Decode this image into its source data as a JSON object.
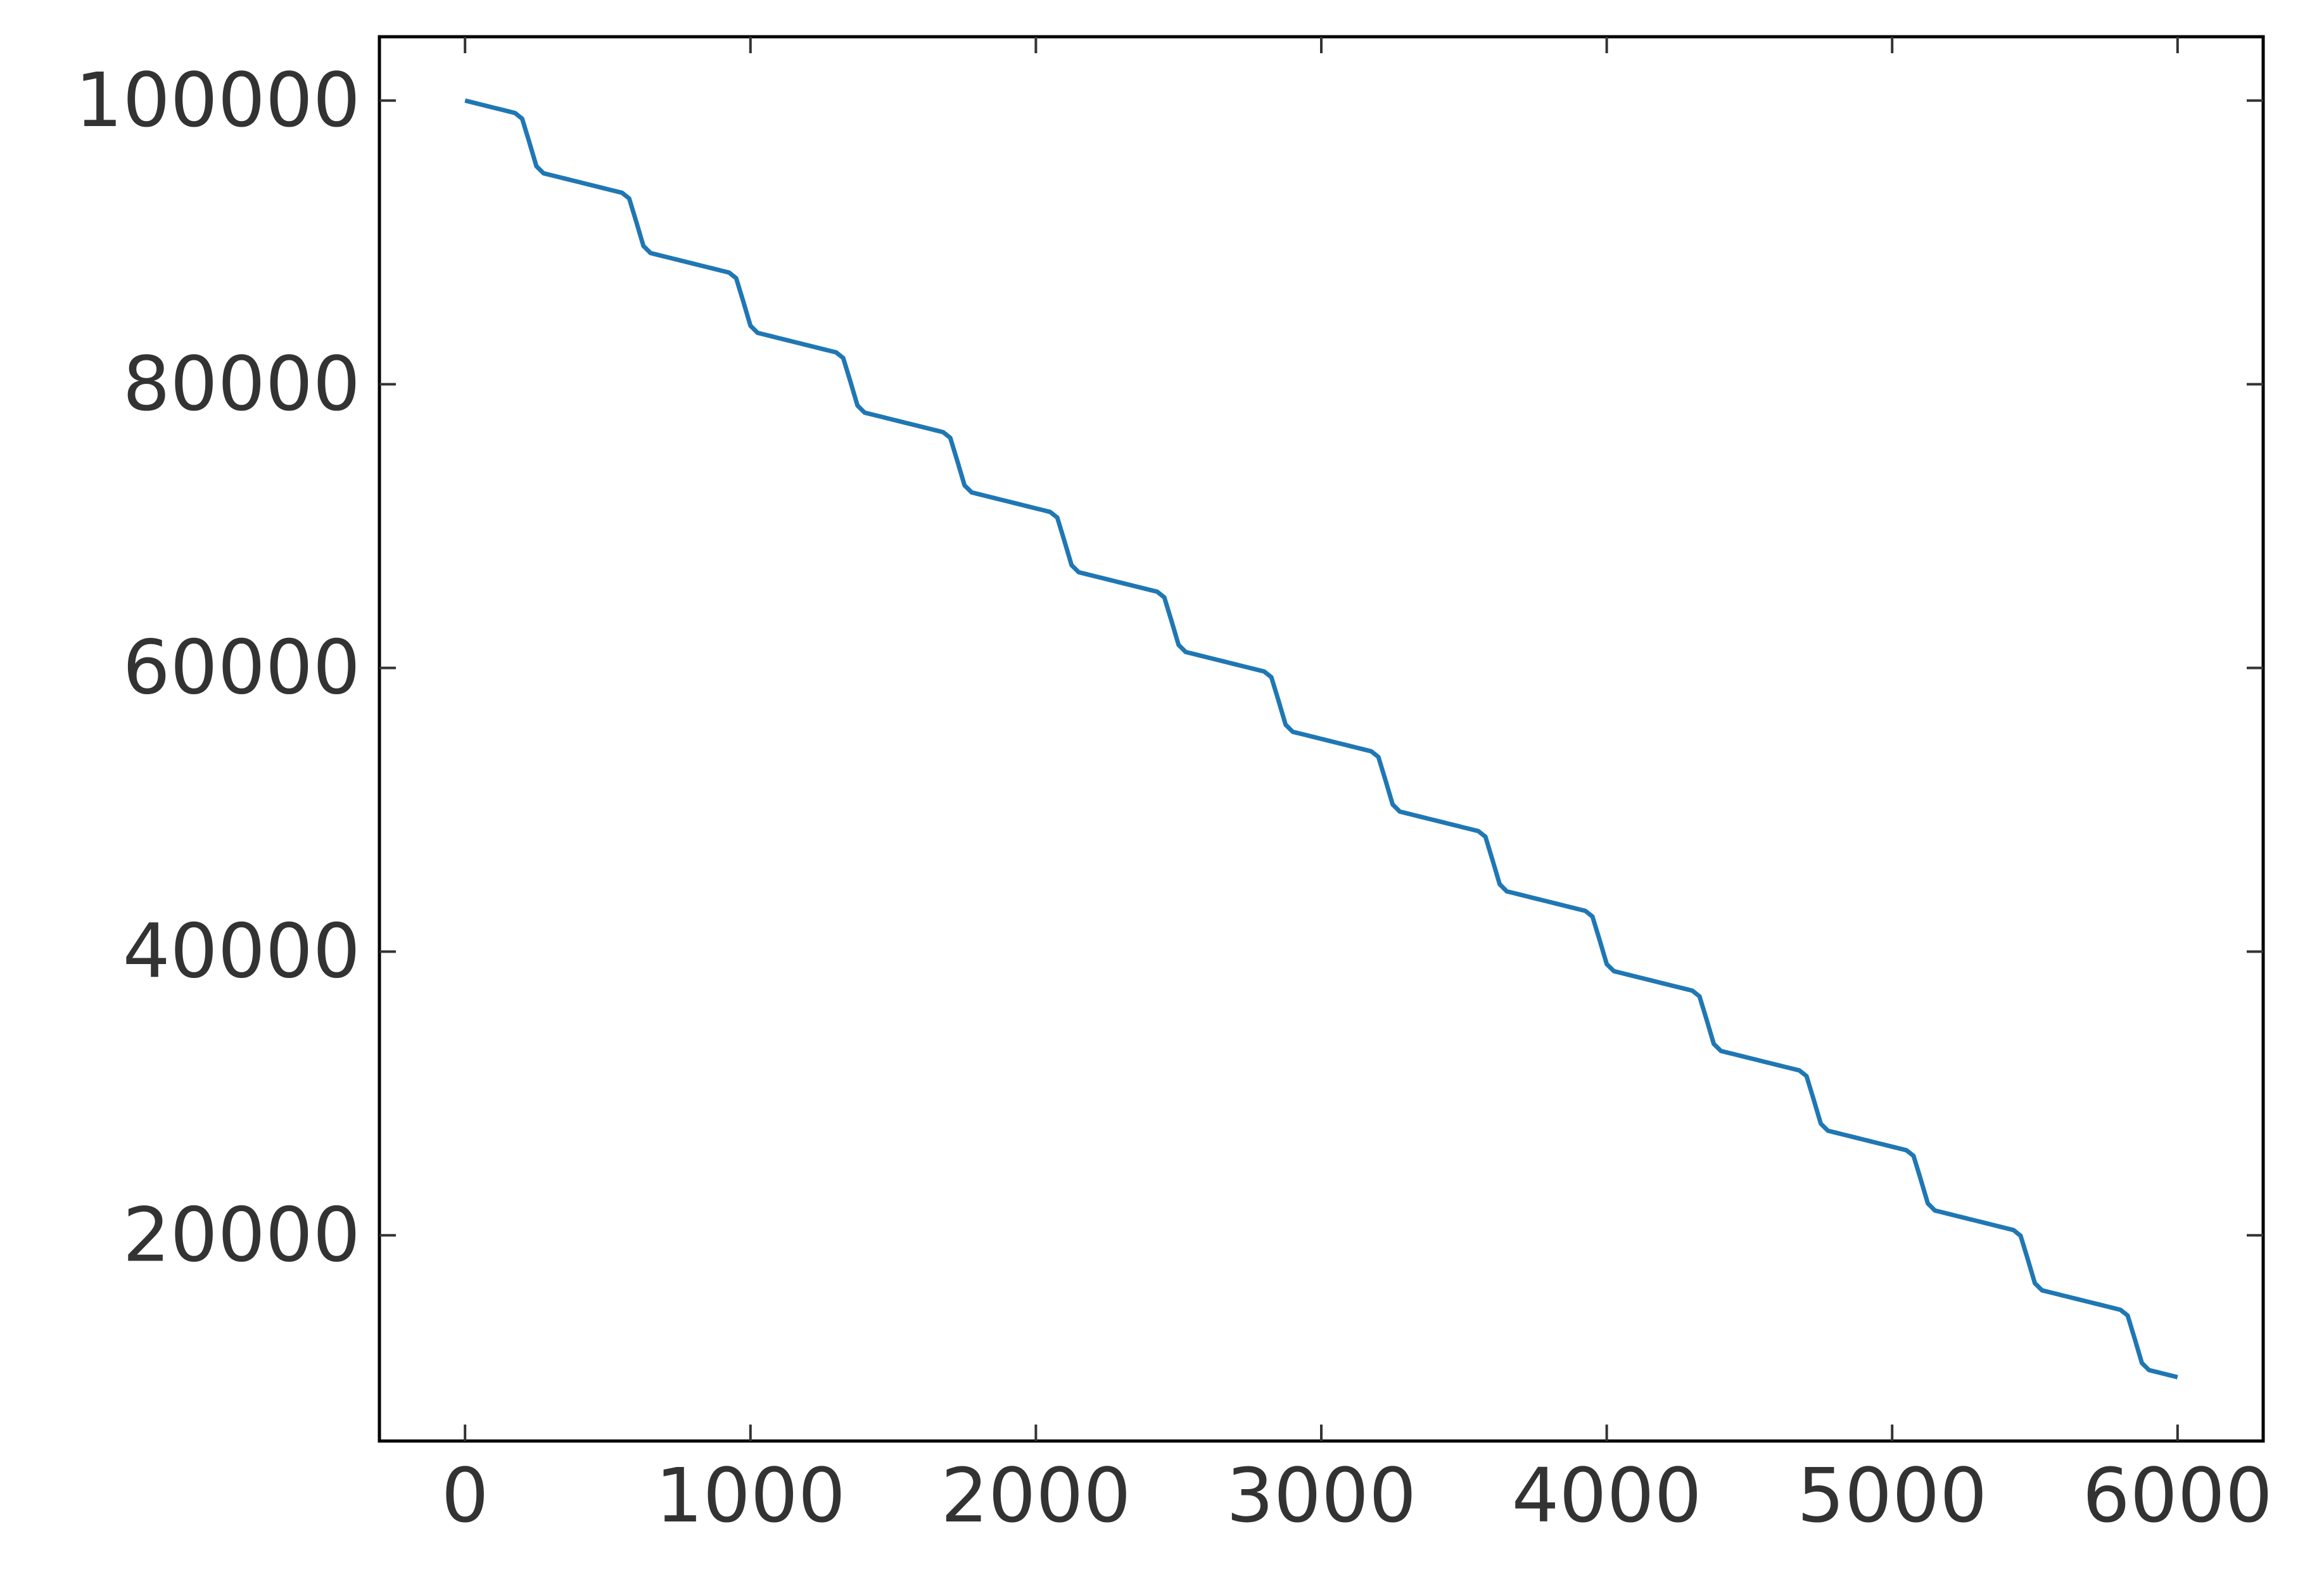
{
  "chart_data": {
    "type": "line",
    "x": [
      0,
      25,
      50,
      75,
      100,
      125,
      150,
      175,
      200,
      225,
      250,
      275,
      300,
      325,
      350,
      375,
      400,
      425,
      450,
      475,
      500,
      525,
      550,
      575,
      600,
      625,
      650,
      675,
      700,
      725,
      750,
      775,
      800,
      825,
      850,
      875,
      900,
      925,
      950,
      975,
      1000,
      1025,
      1050,
      1075,
      1100,
      1125,
      1150,
      1175,
      1200,
      1225,
      1250,
      1275,
      1300,
      1325,
      1350,
      1375,
      1400,
      1425,
      1450,
      1475,
      1500,
      1525,
      1550,
      1575,
      1600,
      1625,
      1650,
      1675,
      1700,
      1725,
      1750,
      1775,
      1800,
      1825,
      1850,
      1875,
      1900,
      1925,
      1950,
      1975,
      2000,
      2025,
      2050,
      2075,
      2100,
      2125,
      2150,
      2175,
      2200,
      2225,
      2250,
      2275,
      2300,
      2325,
      2350,
      2375,
      2400,
      2425,
      2450,
      2475,
      2500,
      2525,
      2550,
      2575,
      2600,
      2625,
      2650,
      2675,
      2700,
      2725,
      2750,
      2775,
      2800,
      2825,
      2850,
      2875,
      2900,
      2925,
      2950,
      2975,
      3000,
      3025,
      3050,
      3075,
      3100,
      3125,
      3150,
      3175,
      3200,
      3225,
      3250,
      3275,
      3300,
      3325,
      3350,
      3375,
      3400,
      3425,
      3450,
      3475,
      3500,
      3525,
      3550,
      3575,
      3600,
      3625,
      3650,
      3675,
      3700,
      3725,
      3750,
      3775,
      3800,
      3825,
      3850,
      3875,
      3900,
      3925,
      3950,
      3975,
      4000,
      4025,
      4050,
      4075,
      4100,
      4125,
      4150,
      4175,
      4200,
      4225,
      4250,
      4275,
      4300,
      4325,
      4350,
      4375,
      4400,
      4425,
      4450,
      4475,
      4500,
      4525,
      4550,
      4575,
      4600,
      4625,
      4650,
      4675,
      4700,
      4725,
      4750,
      4775,
      4800,
      4825,
      4850,
      4875,
      4900,
      4925,
      4950,
      4975,
      5000,
      5025,
      5050,
      5075,
      5100,
      5125,
      5150,
      5175,
      5200,
      5225,
      5250,
      5275,
      5300,
      5325,
      5350,
      5375,
      5400,
      5425,
      5450,
      5475,
      5500,
      5525,
      5550,
      5575,
      5600,
      5625,
      5650,
      5675,
      5700,
      5725,
      5750,
      5775,
      5800,
      5825,
      5850,
      5875,
      5900,
      5925,
      5950,
      5975,
      6000
    ],
    "series": [
      {
        "color": "#1f77b4",
        "values": [
          100000,
          99875,
          99750,
          99625,
          99500,
          99375,
          99250,
          99125,
          98725,
          97075,
          95375,
          94875,
          94750,
          94625,
          94500,
          94375,
          94250,
          94125,
          94000,
          93875,
          93750,
          93625,
          93500,
          93100,
          91450,
          89750,
          89250,
          89125,
          89000,
          88875,
          88750,
          88625,
          88500,
          88375,
          88250,
          88125,
          88000,
          87875,
          87475,
          85825,
          84125,
          83625,
          83500,
          83375,
          83250,
          83125,
          83000,
          82875,
          82750,
          82625,
          82500,
          82375,
          82250,
          81850,
          80200,
          78500,
          78000,
          77875,
          77750,
          77625,
          77500,
          77375,
          77250,
          77125,
          77000,
          76875,
          76750,
          76625,
          76225,
          74575,
          72875,
          72375,
          72250,
          72125,
          72000,
          71875,
          71750,
          71625,
          71500,
          71375,
          71250,
          71125,
          71000,
          70600,
          68950,
          67250,
          66750,
          66625,
          66500,
          66375,
          66250,
          66125,
          66000,
          65875,
          65750,
          65625,
          65500,
          65375,
          64975,
          63325,
          61625,
          61125,
          61000,
          60875,
          60750,
          60625,
          60500,
          60375,
          60250,
          60125,
          60000,
          59875,
          59750,
          59350,
          57700,
          56000,
          55500,
          55375,
          55250,
          55125,
          55000,
          54875,
          54750,
          54625,
          54500,
          54375,
          54250,
          54125,
          53725,
          52075,
          50375,
          49875,
          49750,
          49625,
          49500,
          49375,
          49250,
          49125,
          49000,
          48875,
          48750,
          48625,
          48500,
          48100,
          46450,
          44750,
          44250,
          44125,
          44000,
          43875,
          43750,
          43625,
          43500,
          43375,
          43250,
          43125,
          43000,
          42875,
          42475,
          40825,
          39125,
          38625,
          38500,
          38375,
          38250,
          38125,
          38000,
          37875,
          37750,
          37625,
          37500,
          37375,
          37250,
          36850,
          35200,
          33500,
          33000,
          32875,
          32750,
          32625,
          32500,
          32375,
          32250,
          32125,
          32000,
          31875,
          31750,
          31625,
          31225,
          29575,
          27875,
          27375,
          27250,
          27125,
          27000,
          26875,
          26750,
          26625,
          26500,
          26375,
          26250,
          26125,
          26000,
          25600,
          23950,
          22250,
          21750,
          21625,
          21500,
          21375,
          21250,
          21125,
          21000,
          20875,
          20750,
          20625,
          20500,
          20375,
          19975,
          18325,
          16625,
          16125,
          16000,
          15875,
          15750,
          15625,
          15500,
          15375,
          15250,
          15125,
          15000,
          14875,
          14750,
          14350,
          12700,
          11000,
          10500,
          10375,
          10250,
          10125,
          10000
        ]
      }
    ],
    "xlim": [
      -300,
      6300
    ],
    "ylim": [
      5500,
      104500
    ],
    "xticks": [
      0,
      1000,
      2000,
      3000,
      4000,
      5000,
      6000
    ],
    "yticks": [
      20000,
      40000,
      60000,
      80000,
      100000
    ]
  }
}
